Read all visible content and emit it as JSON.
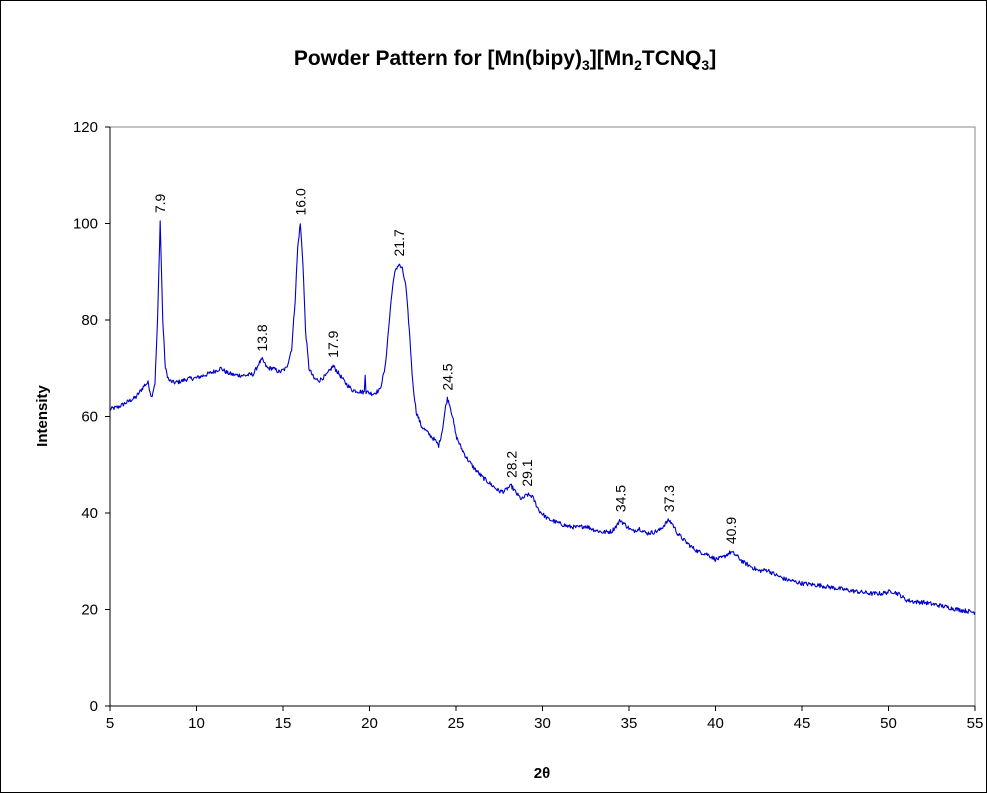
{
  "chart_data": {
    "type": "line",
    "title": {
      "prefix": "Powder Pattern for [Mn(bipy)",
      "sub1": "3",
      "mid1": "][Mn",
      "sub2": "2",
      "mid2": "TCNQ",
      "sub3": "3",
      "suffix": "]"
    },
    "xlabel": "2θ",
    "ylabel": "Intensity",
    "xlim": [
      5,
      55
    ],
    "ylim": [
      0,
      120
    ],
    "xticks": [
      "5",
      "10",
      "15",
      "20",
      "25",
      "30",
      "35",
      "40",
      "45",
      "50",
      "55"
    ],
    "yticks": [
      "0",
      "20",
      "40",
      "60",
      "80",
      "100",
      "120"
    ],
    "grid": false,
    "legend": "none",
    "line_color": "#0000cc",
    "series": [
      {
        "x": [
          5.0,
          5.5,
          6.0,
          6.5,
          7.0,
          7.2,
          7.4,
          7.6,
          7.75,
          7.9,
          8.05,
          8.2,
          8.4,
          8.7,
          9.0,
          9.5,
          10.0,
          10.5,
          11.0,
          11.4,
          11.8,
          12.2,
          12.8,
          13.3,
          13.6,
          13.8,
          14.1,
          14.4,
          14.8,
          15.2,
          15.5,
          15.7,
          15.85,
          16.0,
          16.15,
          16.3,
          16.5,
          16.8,
          17.1,
          17.5,
          17.9,
          18.2,
          18.6,
          19.0,
          19.4,
          19.7,
          19.75,
          19.8,
          19.9,
          20.2,
          20.6,
          20.9,
          21.1,
          21.3,
          21.5,
          21.7,
          21.9,
          22.1,
          22.3,
          22.5,
          22.7,
          23.0,
          23.4,
          23.8,
          24.0,
          24.2,
          24.4,
          24.5,
          24.6,
          24.8,
          25.0,
          25.3,
          25.6,
          26.0,
          26.5,
          27.0,
          27.5,
          27.8,
          28.0,
          28.2,
          28.5,
          28.8,
          29.1,
          29.4,
          29.8,
          30.3,
          31.0,
          31.5,
          32.0,
          32.5,
          33.0,
          33.5,
          34.0,
          34.3,
          34.5,
          34.8,
          35.2,
          35.6,
          36.0,
          36.4,
          36.8,
          37.1,
          37.3,
          37.5,
          37.8,
          38.2,
          38.6,
          39.0,
          39.5,
          40.0,
          40.4,
          40.7,
          40.9,
          41.2,
          41.6,
          42.0,
          42.5,
          43.0,
          43.4,
          44.0,
          45.0,
          46.0,
          47.0,
          48.0,
          49.0,
          49.6,
          50.2,
          50.6,
          51.0,
          51.5,
          52.0,
          53.0,
          54.0,
          55.0
        ],
        "y": [
          61.5,
          62.0,
          63.0,
          64.0,
          66.5,
          67.0,
          64.0,
          67.0,
          80.0,
          100.5,
          80.0,
          70.0,
          67.5,
          67.0,
          67.2,
          67.8,
          68.0,
          68.6,
          69.3,
          70.0,
          69.0,
          68.6,
          68.5,
          68.8,
          71.0,
          71.8,
          70.0,
          70.0,
          69.2,
          70.0,
          74.0,
          84.0,
          95.0,
          100.0,
          92.0,
          78.0,
          70.0,
          67.8,
          67.5,
          68.5,
          70.5,
          69.0,
          67.0,
          65.5,
          65.2,
          65.0,
          69.0,
          65.0,
          65.0,
          64.7,
          65.5,
          70.0,
          78.0,
          86.0,
          90.5,
          91.5,
          90.5,
          87.0,
          78.0,
          67.0,
          61.0,
          58.0,
          56.5,
          55.0,
          54.0,
          57.0,
          62.0,
          63.7,
          63.0,
          60.0,
          56.0,
          53.5,
          51.5,
          49.5,
          47.5,
          46.0,
          44.5,
          44.5,
          45.2,
          45.6,
          44.0,
          42.8,
          43.8,
          43.5,
          40.5,
          38.8,
          37.8,
          37.2,
          37.0,
          37.3,
          36.5,
          36.0,
          36.2,
          37.5,
          38.5,
          37.5,
          36.2,
          36.8,
          35.8,
          36.0,
          36.5,
          37.8,
          38.5,
          37.8,
          35.8,
          34.3,
          33.0,
          32.0,
          31.5,
          30.4,
          30.7,
          31.5,
          31.9,
          31.2,
          29.8,
          29.0,
          28.0,
          28.2,
          27.3,
          26.3,
          25.4,
          25.0,
          24.4,
          23.8,
          23.3,
          23.3,
          23.8,
          23.2,
          22.0,
          21.6,
          21.5,
          20.8,
          20.0,
          19.4
        ]
      }
    ],
    "annotations": [
      {
        "label": "7.9",
        "x": 7.9,
        "y": 100.5
      },
      {
        "label": "13.8",
        "x": 13.8,
        "y": 71.8
      },
      {
        "label": "16.0",
        "x": 16.0,
        "y": 100.0
      },
      {
        "label": "17.9",
        "x": 17.9,
        "y": 70.5
      },
      {
        "label": "21.7",
        "x": 21.7,
        "y": 91.5
      },
      {
        "label": "24.5",
        "x": 24.5,
        "y": 63.7
      },
      {
        "label": "28.2",
        "x": 28.2,
        "y": 45.6
      },
      {
        "label": "29.1",
        "x": 29.1,
        "y": 43.8
      },
      {
        "label": "34.5",
        "x": 34.5,
        "y": 38.5
      },
      {
        "label": "37.3",
        "x": 37.3,
        "y": 38.5
      },
      {
        "label": "40.9",
        "x": 40.9,
        "y": 31.9
      }
    ]
  }
}
